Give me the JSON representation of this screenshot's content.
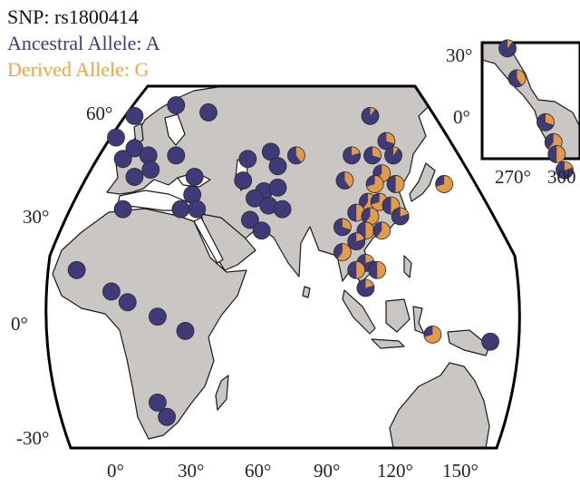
{
  "legend": {
    "snp": "SNP: rs1800414",
    "ancestral": "Ancestral Allele: A",
    "derived": "Derived Allele: G"
  },
  "colors": {
    "ancestral": "#3f3a78",
    "derived": "#f2a443",
    "mixed": "#e37d6d",
    "land": "#c9c6c3",
    "ocean": "#ffffff",
    "border": "#111111"
  },
  "axes": {
    "lat_ticks": [
      "60°",
      "30°",
      "0°",
      "-30°"
    ],
    "lon_ticks": [
      "0°",
      "30°",
      "60°",
      "90°",
      "120°",
      "150°"
    ],
    "inset_lat_ticks": [
      "30°",
      "0°"
    ],
    "inset_lon_ticks": [
      "270°",
      "300"
    ]
  },
  "populations": [
    {
      "lon": 8,
      "lat": 58,
      "g": 0
    },
    {
      "lon": 26,
      "lat": 61,
      "g": 0
    },
    {
      "lon": 40,
      "lat": 59,
      "g": 0
    },
    {
      "lon": 0,
      "lat": 52,
      "g": 0
    },
    {
      "lon": 8,
      "lat": 49,
      "g": 0
    },
    {
      "lon": 3,
      "lat": 46,
      "g": 0
    },
    {
      "lon": 14,
      "lat": 47,
      "g": 0
    },
    {
      "lon": 15,
      "lat": 43,
      "g": 0
    },
    {
      "lon": 8,
      "lat": 41,
      "g": 0
    },
    {
      "lon": 26,
      "lat": 47,
      "g": 0
    },
    {
      "lon": 34,
      "lat": 41,
      "g": 0
    },
    {
      "lon": 33,
      "lat": 36,
      "g": 0
    },
    {
      "lon": 35,
      "lat": 32,
      "g": 0
    },
    {
      "lon": 28,
      "lat": 32,
      "g": 0
    },
    {
      "lon": 3,
      "lat": 32,
      "g": 0
    },
    {
      "lon": 57,
      "lat": 46,
      "g": 0
    },
    {
      "lon": 67,
      "lat": 48,
      "g": 0
    },
    {
      "lon": 70,
      "lat": 44,
      "g": 0
    },
    {
      "lon": 55,
      "lat": 40,
      "g": 0
    },
    {
      "lon": 64,
      "lat": 37,
      "g": 0
    },
    {
      "lon": 70,
      "lat": 38,
      "g": 0
    },
    {
      "lon": 60,
      "lat": 35,
      "g": 0
    },
    {
      "lon": 66,
      "lat": 33,
      "g": 0
    },
    {
      "lon": 72,
      "lat": 32,
      "g": 0
    },
    {
      "lon": 58,
      "lat": 29,
      "g": 0
    },
    {
      "lon": 63,
      "lat": 26,
      "g": 0
    },
    {
      "lon": 78,
      "lat": 47,
      "g": 0.4
    },
    {
      "lon": 110,
      "lat": 58,
      "g": 0.1
    },
    {
      "lon": 117,
      "lat": 51,
      "g": 0.3
    },
    {
      "lon": 102,
      "lat": 47,
      "g": 0.2
    },
    {
      "lon": 111,
      "lat": 47,
      "g": 0.3
    },
    {
      "lon": 120,
      "lat": 47,
      "g": 0.1
    },
    {
      "lon": 115,
      "lat": 42,
      "g": 0.6
    },
    {
      "lon": 99,
      "lat": 40,
      "g": 0.4
    },
    {
      "lon": 112,
      "lat": 39,
      "g": 0.7
    },
    {
      "lon": 121,
      "lat": 39,
      "g": 0.5
    },
    {
      "lon": 142,
      "lat": 39,
      "g": 0.7
    },
    {
      "lon": 109,
      "lat": 34,
      "g": 0.6
    },
    {
      "lon": 114,
      "lat": 34,
      "g": 0.7
    },
    {
      "lon": 119,
      "lat": 33,
      "g": 0.5
    },
    {
      "lon": 104,
      "lat": 31,
      "g": 0.5
    },
    {
      "lon": 110,
      "lat": 30,
      "g": 0.6
    },
    {
      "lon": 123,
      "lat": 30,
      "g": 0.2
    },
    {
      "lon": 98,
      "lat": 27,
      "g": 0.3
    },
    {
      "lon": 108,
      "lat": 26,
      "g": 0.5
    },
    {
      "lon": 115,
      "lat": 26,
      "g": 0.6
    },
    {
      "lon": 104,
      "lat": 23,
      "g": 0.2
    },
    {
      "lon": 98,
      "lat": 20,
      "g": 0.6
    },
    {
      "lon": 108,
      "lat": 17,
      "g": 0.2
    },
    {
      "lon": 104,
      "lat": 15,
      "g": 0.5
    },
    {
      "lon": 113,
      "lat": 15,
      "g": 0.5
    },
    {
      "lon": 108,
      "lat": 10,
      "g": 0.2
    },
    {
      "lon": 137,
      "lat": -3,
      "g": 0.7
    },
    {
      "lon": 162,
      "lat": -5,
      "g": 0
    },
    {
      "lon": -17,
      "lat": 15,
      "g": 0
    },
    {
      "lon": -2,
      "lat": 9,
      "g": 0
    },
    {
      "lon": 5,
      "lat": 6,
      "g": 0
    },
    {
      "lon": 18,
      "lat": 2,
      "g": 0
    },
    {
      "lon": 30,
      "lat": -2,
      "g": 0
    },
    {
      "lon": 18,
      "lat": -22,
      "g": 0
    },
    {
      "lon": 22,
      "lat": -26,
      "g": 0
    }
  ],
  "inset_populations": [
    {
      "lon": 260,
      "lat": 33,
      "g": 0.1
    },
    {
      "lon": 266,
      "lat": 18,
      "g": 0.4
    },
    {
      "lon": 284,
      "lat": -4,
      "g": 0.3
    },
    {
      "lon": 289,
      "lat": -14,
      "g": 0.6
    },
    {
      "lon": 291,
      "lat": -20,
      "g": 0.5
    },
    {
      "lon": 296,
      "lat": -28,
      "g": 0.2
    }
  ]
}
